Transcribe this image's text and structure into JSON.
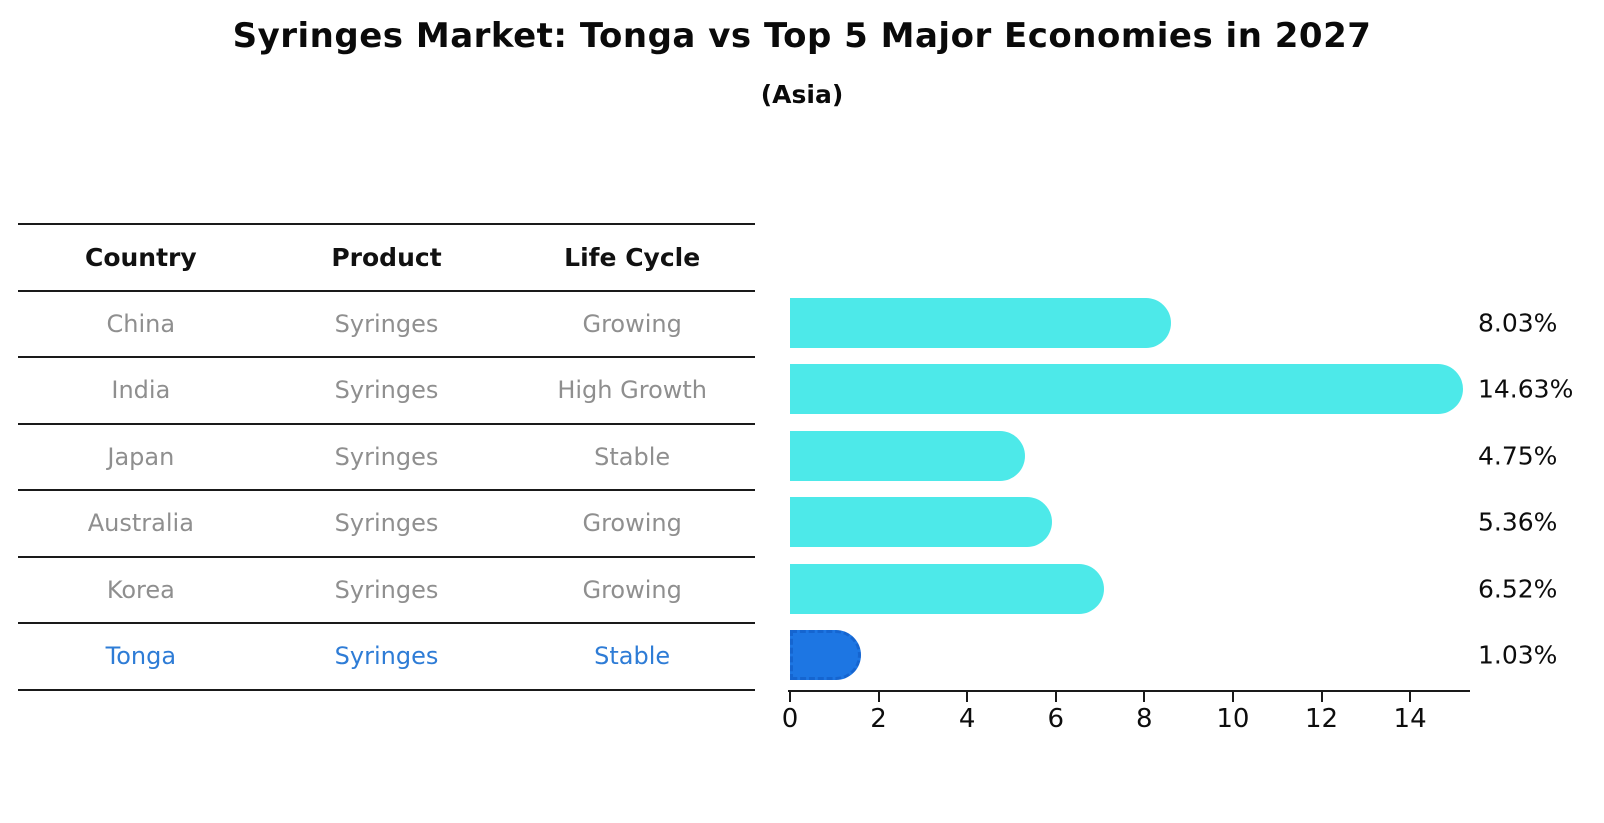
{
  "title": "Syringes Market: Tonga vs Top 5 Major Economies in 2027",
  "subtitle": "(Asia)",
  "table": {
    "headers": [
      "Country",
      "Product",
      "Life Cycle"
    ],
    "rows": [
      {
        "country": "China",
        "product": "Syringes",
        "life_cycle": "Growing",
        "highlight": false
      },
      {
        "country": "India",
        "product": "Syringes",
        "life_cycle": "High Growth",
        "highlight": false
      },
      {
        "country": "Japan",
        "product": "Syringes",
        "life_cycle": "Stable",
        "highlight": false
      },
      {
        "country": "Australia",
        "product": "Syringes",
        "life_cycle": "Growing",
        "highlight": false
      },
      {
        "country": "Korea",
        "product": "Syringes",
        "life_cycle": "Growing",
        "highlight": false
      },
      {
        "country": "Tonga",
        "product": "Syringes",
        "life_cycle": "Stable",
        "highlight": true
      }
    ]
  },
  "chart_data": {
    "type": "bar",
    "orientation": "horizontal",
    "categories": [
      "China",
      "India",
      "Japan",
      "Australia",
      "Korea",
      "Tonga"
    ],
    "values": [
      8.03,
      14.63,
      4.75,
      5.36,
      6.52,
      1.03
    ],
    "labels": [
      "8.03%",
      "14.63%",
      "4.75%",
      "5.36%",
      "6.52%",
      "1.03%"
    ],
    "xticks": [
      "0",
      "2",
      "4",
      "6",
      "8",
      "10",
      "12",
      "14"
    ],
    "xtick_values": [
      0,
      2,
      4,
      6,
      8,
      10,
      12,
      14
    ],
    "xlim": [
      0,
      14.63
    ],
    "grid": false,
    "legend": "none",
    "bar_color": "#4DE9E9",
    "highlight_index": 5,
    "highlight_color": "#1D76E3",
    "highlight_border_color": "#1565D0",
    "highlight_border_style": "dashed"
  },
  "colors": {
    "text_primary": "#0a0a0a",
    "text_muted": "#8f8f8f",
    "highlight_text": "#2E7CD6",
    "line": "#1a1a1a"
  }
}
